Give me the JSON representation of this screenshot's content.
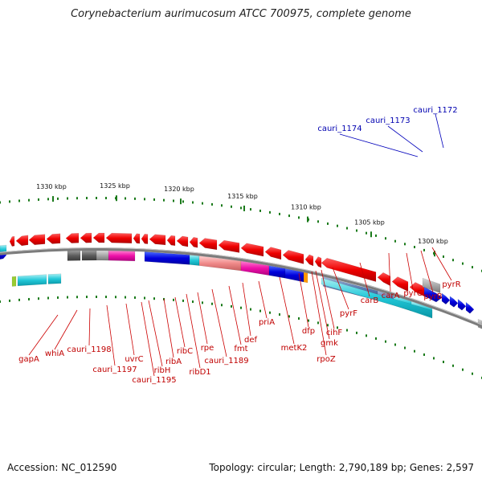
{
  "title": "Corynebacterium aurimucosum ATCC 700975, complete genome",
  "footer": {
    "accession": "Accession: NC_012590",
    "summary": "Topology: circular; Length: 2,790,189 bp; Genes: 2,597"
  },
  "colors": {
    "red_gene": "#ee0000",
    "backbone": "#888888",
    "label_red": "#cc0000",
    "label_blue": "#0000bb",
    "ticks": "#1a7a1a"
  },
  "ticks": [
    {
      "label": "1330 kbp"
    },
    {
      "label": "1325 kbp"
    },
    {
      "label": "1320 kbp"
    },
    {
      "label": "1315 kbp"
    },
    {
      "label": "1310 kbp"
    },
    {
      "label": "1305 kbp"
    },
    {
      "label": "1300 kbp"
    }
  ],
  "labels_red": [
    {
      "text": "gapA"
    },
    {
      "text": "whiA"
    },
    {
      "text": "cauri_1198"
    },
    {
      "text": "cauri_1197"
    },
    {
      "text": "uvrC"
    },
    {
      "text": "cauri_1195"
    },
    {
      "text": "ribH"
    },
    {
      "text": "ribA"
    },
    {
      "text": "ribC"
    },
    {
      "text": "ribD1"
    },
    {
      "text": "rpe"
    },
    {
      "text": "cauri_1189"
    },
    {
      "text": "fmt"
    },
    {
      "text": "def"
    },
    {
      "text": "priA"
    },
    {
      "text": "metK2"
    },
    {
      "text": "dfp"
    },
    {
      "text": "rpoZ"
    },
    {
      "text": "gmk"
    },
    {
      "text": "cihF"
    },
    {
      "text": "pyrF"
    },
    {
      "text": "carB"
    },
    {
      "text": "carA"
    },
    {
      "text": "pyrC"
    },
    {
      "text": "pyrB"
    },
    {
      "text": "pyrR"
    }
  ],
  "labels_blue": [
    {
      "text": "cauri_1174"
    },
    {
      "text": "cauri_1173"
    },
    {
      "text": "cauri_1172"
    }
  ]
}
